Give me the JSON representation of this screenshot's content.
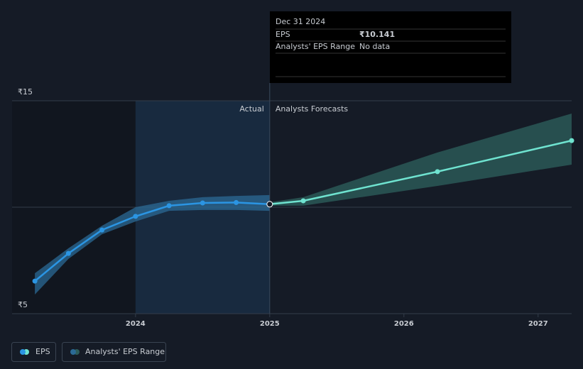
{
  "chart_data": {
    "type": "line",
    "xlim": [
      2023.08,
      2027.25
    ],
    "xticks": [
      2024,
      2025,
      2026,
      2027
    ],
    "ylim": [
      5,
      15
    ],
    "yticks": [
      {
        "value": 5,
        "label": "₹5"
      },
      {
        "value": 15,
        "label": "₹15"
      }
    ],
    "ygrid": [
      10,
      15
    ],
    "series": [
      {
        "name": "EPS",
        "color": "#2b95e3",
        "x": [
          2023.25,
          2023.5,
          2023.75,
          2024.0,
          2024.25,
          2024.5,
          2024.75,
          2025.0
        ],
        "values": [
          6.53,
          7.83,
          8.93,
          9.57,
          10.07,
          10.2,
          10.22,
          10.141
        ]
      }
    ],
    "range": {
      "name": "Analysts' EPS Range",
      "color": "#2b6a96",
      "x": [
        2023.25,
        2023.5,
        2023.75,
        2024.0,
        2024.25,
        2024.5,
        2024.75,
        2025.0
      ],
      "low": [
        5.9,
        7.57,
        8.73,
        9.33,
        9.83,
        9.87,
        9.87,
        9.83
      ],
      "high": [
        6.9,
        8.07,
        9.13,
        10.0,
        10.3,
        10.47,
        10.53,
        10.57
      ]
    },
    "forecast": {
      "color": "#6fe3d0",
      "range_color": "#2c5c5a",
      "x": [
        2025.0,
        2025.25,
        2026.25,
        2027.25
      ],
      "values": [
        10.141,
        10.3,
        11.67,
        13.13
      ],
      "low": [
        10.07,
        10.07,
        11.0,
        12.0
      ],
      "high": [
        10.23,
        10.47,
        12.57,
        14.4
      ]
    },
    "actual_label": "Actual",
    "forecast_label": "Analysts Forecasts",
    "tooltip": {
      "date": "Dec 31 2024",
      "rows": [
        {
          "label": "EPS",
          "value": "₹10.141"
        },
        {
          "label": "Analysts' EPS Range",
          "value": "No data"
        }
      ]
    }
  }
}
